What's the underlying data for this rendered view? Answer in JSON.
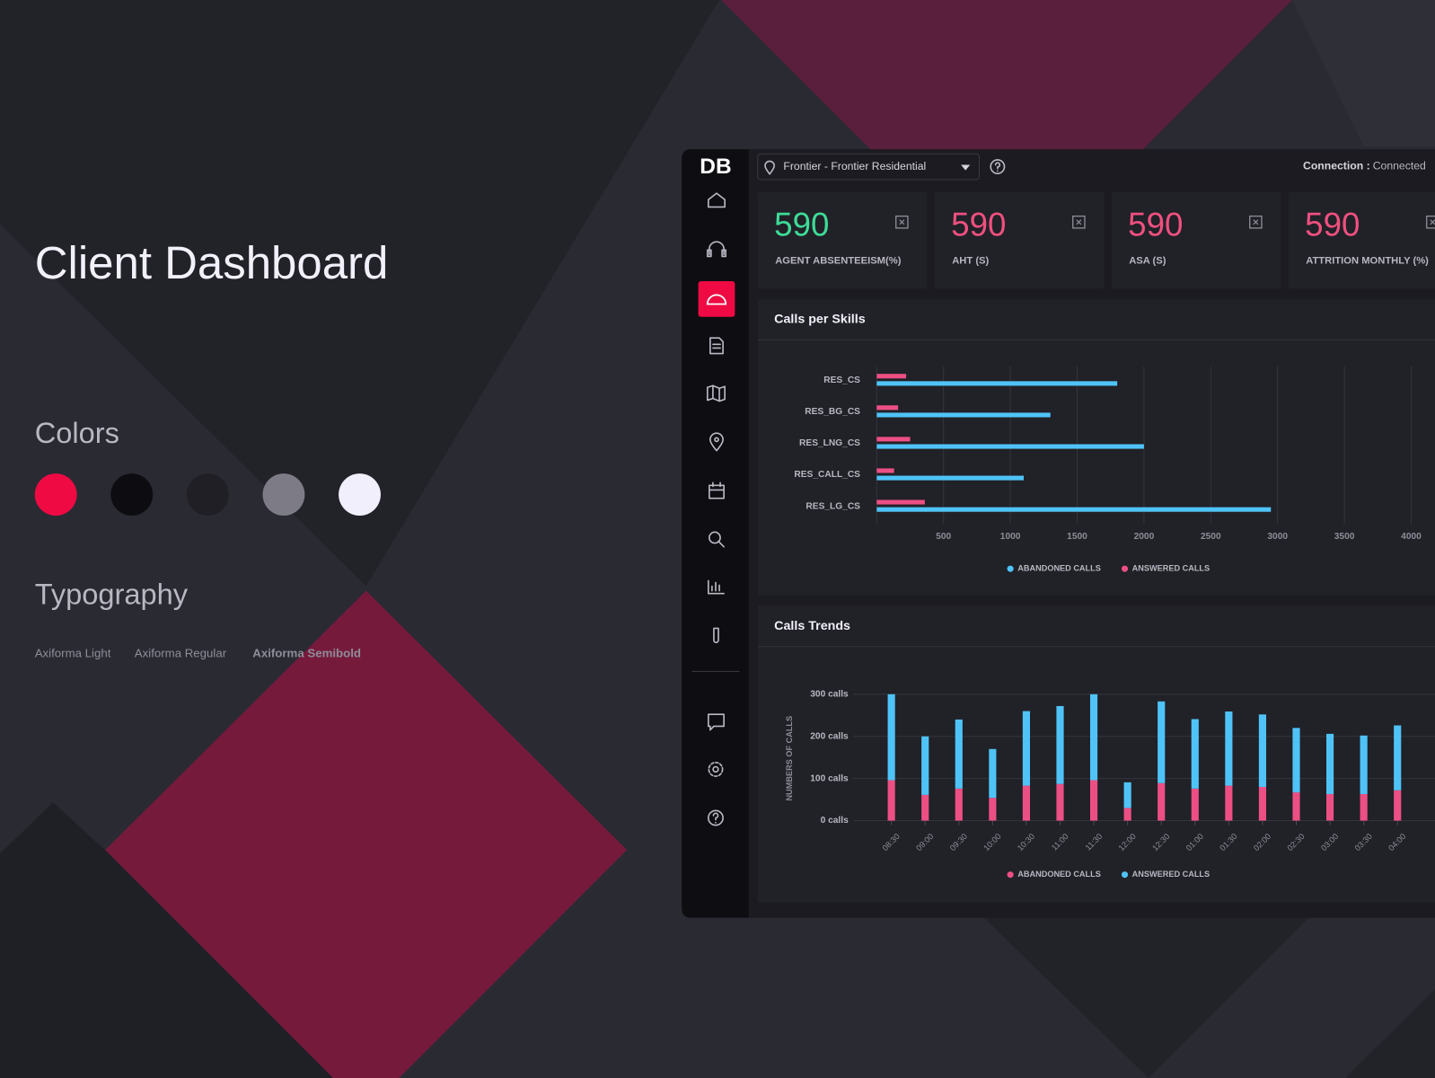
{
  "title": "Client Dashboard",
  "colors_heading": "Colors",
  "palette": [
    "#ef0a43",
    "#0d0d11",
    "#1f1f25",
    "#7d7c86",
    "#f1effc"
  ],
  "typography_heading": "Typography",
  "fonts": [
    "Axiforma Light",
    "Axiforma Regular",
    "Axiforma Semibold"
  ],
  "dashboard": {
    "logo": "DB",
    "location": "Frontier - Frontier Residential",
    "connection_label": "Connection :",
    "connection_status": "Connected",
    "kpis": [
      {
        "value": 590,
        "label": "AGENT ABSENTEEISM(%)",
        "color": "#3ddc97"
      },
      {
        "value": 590,
        "label": "AHT (S)",
        "color": "#f0507f"
      },
      {
        "value": 590,
        "label": "ASA (S)",
        "color": "#f0507f"
      },
      {
        "value": 590,
        "label": "ATTRITION MONTHLY (%)",
        "color": "#f0507f"
      }
    ]
  },
  "chart_data": [
    {
      "type": "bar",
      "orientation": "horizontal",
      "title": "Calls per Skills",
      "categories": [
        "RES_CS",
        "RES_BG_CS",
        "RES_LNG_CS",
        "RES_CALL_CS",
        "RES_LG_CS"
      ],
      "series": [
        {
          "name": "ABANDONED CALLS",
          "color": "#4fc3f7",
          "values": [
            1800,
            1300,
            2000,
            1100,
            2950
          ]
        },
        {
          "name": "ANSWERED CALLS",
          "color": "#ec4f83",
          "values": [
            220,
            160,
            250,
            130,
            360
          ]
        }
      ],
      "xlim": [
        0,
        4000
      ],
      "xticks": [
        500,
        1000,
        1500,
        2000,
        2500,
        3000,
        3500,
        4000
      ],
      "grid": true,
      "legend": "bottom"
    },
    {
      "type": "stacked_bar",
      "title": "Calls Trends",
      "ylabel": "NUMBERS OF CALLS",
      "categories": [
        "08:30",
        "09:00",
        "09:30",
        "10:00",
        "10:30",
        "11:00",
        "11:30",
        "12:00",
        "12:30",
        "01:00",
        "01:30",
        "02:00",
        "02:30",
        "03:00",
        "03:30",
        "04:00"
      ],
      "series": [
        {
          "name": "ABANDONED CALLS",
          "color": "#ec4f83",
          "values": [
            96,
            61,
            76,
            54,
            83,
            87,
            96,
            30,
            89,
            76,
            83,
            80,
            67,
            63,
            63,
            72
          ]
        },
        {
          "name": "ANSWERED CALLS",
          "color": "#4fc3f7",
          "values": [
            204,
            139,
            164,
            116,
            177,
            185,
            204,
            61,
            194,
            165,
            176,
            172,
            153,
            143,
            139,
            154
          ]
        }
      ],
      "ylim": [
        0,
        300
      ],
      "yticks": [
        {
          "value": 0,
          "label": "0 calls"
        },
        {
          "value": 100,
          "label": "100 calls"
        },
        {
          "value": 200,
          "label": "200 calls"
        },
        {
          "value": 300,
          "label": "300 calls"
        }
      ],
      "grid": true,
      "legend": "bottom"
    }
  ]
}
